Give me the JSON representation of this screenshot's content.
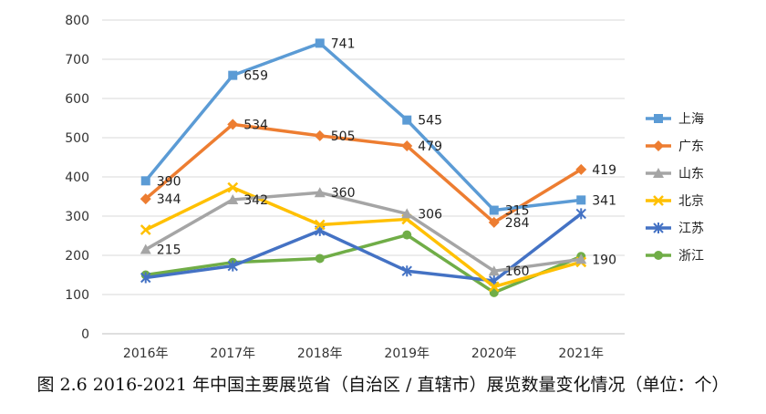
{
  "caption": "图 2.6  2016-2021 年中国主要展览省（自治区 / 直辖市）展览数量变化情况（单位：个）",
  "chart_data": {
    "type": "line",
    "title": "",
    "xlabel": "",
    "ylabel": "",
    "categories": [
      "2016年",
      "2017年",
      "2018年",
      "2019年",
      "2020年",
      "2021年"
    ],
    "ylim": [
      0,
      800
    ],
    "yticks": [
      0,
      100,
      200,
      300,
      400,
      500,
      600,
      700,
      800
    ],
    "grid": true,
    "legend_position": "right",
    "series": [
      {
        "name": "上海",
        "color": "#5B9BD5",
        "marker": "square",
        "values": [
          390,
          659,
          741,
          545,
          315,
          341
        ]
      },
      {
        "name": "广东",
        "color": "#ED7D31",
        "marker": "diamond",
        "values": [
          344,
          534,
          505,
          479,
          284,
          419
        ]
      },
      {
        "name": "山东",
        "color": "#A5A5A5",
        "marker": "triangle",
        "values": [
          215,
          342,
          360,
          306,
          160,
          190
        ]
      },
      {
        "name": "北京",
        "color": "#FFC000",
        "marker": "x",
        "values": [
          265,
          373,
          278,
          292,
          120,
          183
        ]
      },
      {
        "name": "江苏",
        "color": "#4472C4",
        "marker": "star",
        "values": [
          143,
          173,
          263,
          160,
          135,
          306
        ]
      },
      {
        "name": "浙江",
        "color": "#70AD47",
        "marker": "circle",
        "values": [
          150,
          182,
          192,
          252,
          105,
          197
        ]
      }
    ],
    "data_labels": [
      {
        "series": 0,
        "index": 0,
        "text": "390"
      },
      {
        "series": 0,
        "index": 1,
        "text": "659"
      },
      {
        "series": 0,
        "index": 2,
        "text": "741"
      },
      {
        "series": 0,
        "index": 3,
        "text": "545"
      },
      {
        "series": 0,
        "index": 4,
        "text": "315"
      },
      {
        "series": 0,
        "index": 5,
        "text": "341"
      },
      {
        "series": 1,
        "index": 0,
        "text": "344"
      },
      {
        "series": 1,
        "index": 1,
        "text": "534"
      },
      {
        "series": 1,
        "index": 2,
        "text": "505"
      },
      {
        "series": 1,
        "index": 3,
        "text": "479"
      },
      {
        "series": 1,
        "index": 4,
        "text": "284"
      },
      {
        "series": 1,
        "index": 5,
        "text": "419"
      },
      {
        "series": 2,
        "index": 0,
        "text": "215"
      },
      {
        "series": 2,
        "index": 1,
        "text": "342"
      },
      {
        "series": 2,
        "index": 2,
        "text": "360"
      },
      {
        "series": 2,
        "index": 3,
        "text": "306"
      },
      {
        "series": 2,
        "index": 4,
        "text": "160"
      },
      {
        "series": 2,
        "index": 5,
        "text": "190"
      }
    ]
  }
}
